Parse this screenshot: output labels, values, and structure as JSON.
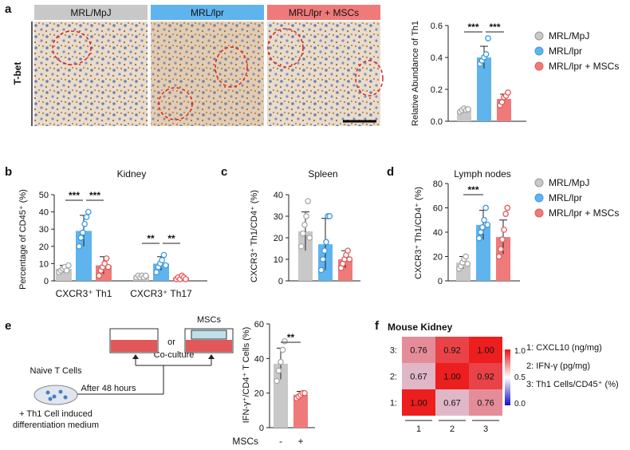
{
  "panels": {
    "a": "a",
    "b": "b",
    "c": "c",
    "d": "d",
    "e": "e",
    "f": "f"
  },
  "colors": {
    "mpj": "#c8c8c8",
    "lpr": "#5fb4ee",
    "msc": "#f07a7a",
    "mpj_dot": "#a9a9a9",
    "lpr_dot": "#3d9ae0",
    "msc_dot": "#e45a5a"
  },
  "legend": [
    "MRL/MpJ",
    "MRL/lpr",
    "MRL/lpr + MSCs"
  ],
  "panel_a": {
    "headers": [
      "MRL/MpJ",
      "MRL/lpr",
      "MRL/lpr + MSCs"
    ],
    "row_label": "T-bet"
  },
  "panel_e": {
    "naive": "Naive T Cells",
    "medium_line1": "+ Th1 Cell induced",
    "medium_line2": "differentiation medium",
    "after": "After 48 hours",
    "coculture": "Co-culture",
    "or": "or",
    "mscs": "MSCs"
  },
  "chart_data": [
    {
      "id": "a",
      "type": "bar",
      "categories": [
        "MRL/MpJ",
        "MRL/lpr",
        "MRL/lpr + MSCs"
      ],
      "values": [
        0.07,
        0.4,
        0.14
      ],
      "errors": [
        0.01,
        0.07,
        0.03
      ],
      "points": [
        [
          0.06,
          0.07,
          0.08,
          0.07,
          0.075
        ],
        [
          0.36,
          0.38,
          0.4,
          0.42,
          0.52
        ],
        [
          0.1,
          0.12,
          0.15,
          0.16,
          0.18
        ]
      ],
      "title": "",
      "ylabel": "Relative Abundance of Th1",
      "ylim": [
        0,
        0.6
      ],
      "yticks": [
        "0.0",
        "0.2",
        "0.4",
        "0.6"
      ],
      "significance": [
        "***",
        "***"
      ]
    },
    {
      "id": "b",
      "type": "bar",
      "title": "Kidney",
      "groups": [
        "CXCR3⁺ Th1",
        "CXCR3⁺ Th17"
      ],
      "series": [
        {
          "name": "MRL/MpJ",
          "values": [
            7,
            3
          ],
          "errors": [
            2,
            1
          ],
          "points": [
            [
              5,
              6,
              7,
              8,
              6,
              9
            ],
            [
              2,
              3,
              2,
              3,
              2,
              3
            ]
          ]
        },
        {
          "name": "MRL/lpr",
          "values": [
            29,
            10
          ],
          "errors": [
            9,
            4
          ],
          "points": [
            [
              20,
              25,
              28,
              33,
              37,
              40
            ],
            [
              5,
              8,
              10,
              12,
              15,
              9
            ]
          ]
        },
        {
          "name": "MRL/lpr + MSCs",
          "values": [
            9,
            2
          ],
          "errors": [
            5,
            1
          ],
          "points": [
            [
              3,
              6,
              8,
              10,
              13,
              8
            ],
            [
              1,
              2,
              1,
              3,
              2,
              1
            ]
          ]
        }
      ],
      "ylabel": "Percentage of CD45⁺ (%)",
      "ylim": [
        0,
        50
      ],
      "yticks": [
        "0",
        "10",
        "20",
        "30",
        "40",
        "50"
      ],
      "significance": [
        "***",
        "***",
        "**",
        "**"
      ]
    },
    {
      "id": "c",
      "type": "bar",
      "title": "Spleen",
      "categories": [
        "MRL/MpJ",
        "MRL/lpr",
        "MRL/lpr + MSCs"
      ],
      "values": [
        23,
        17,
        10
      ],
      "errors": [
        9,
        12,
        4
      ],
      "points": [
        [
          16,
          22,
          26,
          30,
          37,
          20
        ],
        [
          5,
          10,
          14,
          18,
          30,
          30
        ],
        [
          6,
          8,
          10,
          12,
          14,
          10
        ]
      ],
      "ylabel": "CXCR3⁺ Th1/CD4⁺ (%)",
      "ylim": [
        0,
        40
      ],
      "yticks": [
        "0",
        "10",
        "20",
        "30",
        "40"
      ]
    },
    {
      "id": "d",
      "type": "bar",
      "title": "Lymph nodes",
      "categories": [
        "MRL/MpJ",
        "MRL/lpr",
        "MRL/lpr + MSCs"
      ],
      "values": [
        15,
        46,
        36
      ],
      "errors": [
        5,
        12,
        14
      ],
      "points": [
        [
          10,
          12,
          15,
          18,
          20,
          14
        ],
        [
          35,
          40,
          44,
          50,
          60,
          46
        ],
        [
          20,
          26,
          34,
          42,
          55,
          60
        ]
      ],
      "ylabel": "CXCR3⁺ Th1/CD4⁺ (%)",
      "ylim": [
        0,
        80
      ],
      "yticks": [
        "0",
        "20",
        "40",
        "60",
        "80"
      ],
      "significance": [
        "***"
      ]
    },
    {
      "id": "e",
      "type": "bar",
      "categories": [
        "-",
        "+"
      ],
      "xlabel": "MSCs",
      "values": [
        37,
        19
      ],
      "errors": [
        9,
        2
      ],
      "points": [
        [
          27,
          33,
          38,
          45,
          50
        ],
        [
          17,
          18,
          19,
          20,
          20
        ]
      ],
      "ylabel": "IFN-γ⁺/CD4⁺ T Cells (%)",
      "ylim": [
        0,
        60
      ],
      "yticks": [
        "0",
        "20",
        "40",
        "60"
      ],
      "significance": [
        "**"
      ]
    },
    {
      "id": "f",
      "type": "heatmap",
      "title": "Mouse Kidney",
      "row_labels": [
        "3:",
        "2:",
        "1:"
      ],
      "col_labels": [
        "1",
        "2",
        "3"
      ],
      "matrix": [
        [
          0.76,
          0.92,
          1.0
        ],
        [
          0.67,
          1.0,
          0.92
        ],
        [
          1.0,
          0.67,
          0.76
        ]
      ],
      "matrix_text": [
        [
          "0.76",
          "0.92",
          "1.00"
        ],
        [
          "0.67",
          "1.00",
          "0.92"
        ],
        [
          "1.00",
          "0.67",
          "0.76"
        ]
      ],
      "colorbar_ticks": [
        "1.0",
        "0.5",
        "0.0"
      ],
      "key": [
        "1: CXCL10 (ng/mg)",
        "2: IFN-γ (pg/mg)",
        "3: Th1 Cells/CD45⁺ (%)"
      ]
    }
  ]
}
